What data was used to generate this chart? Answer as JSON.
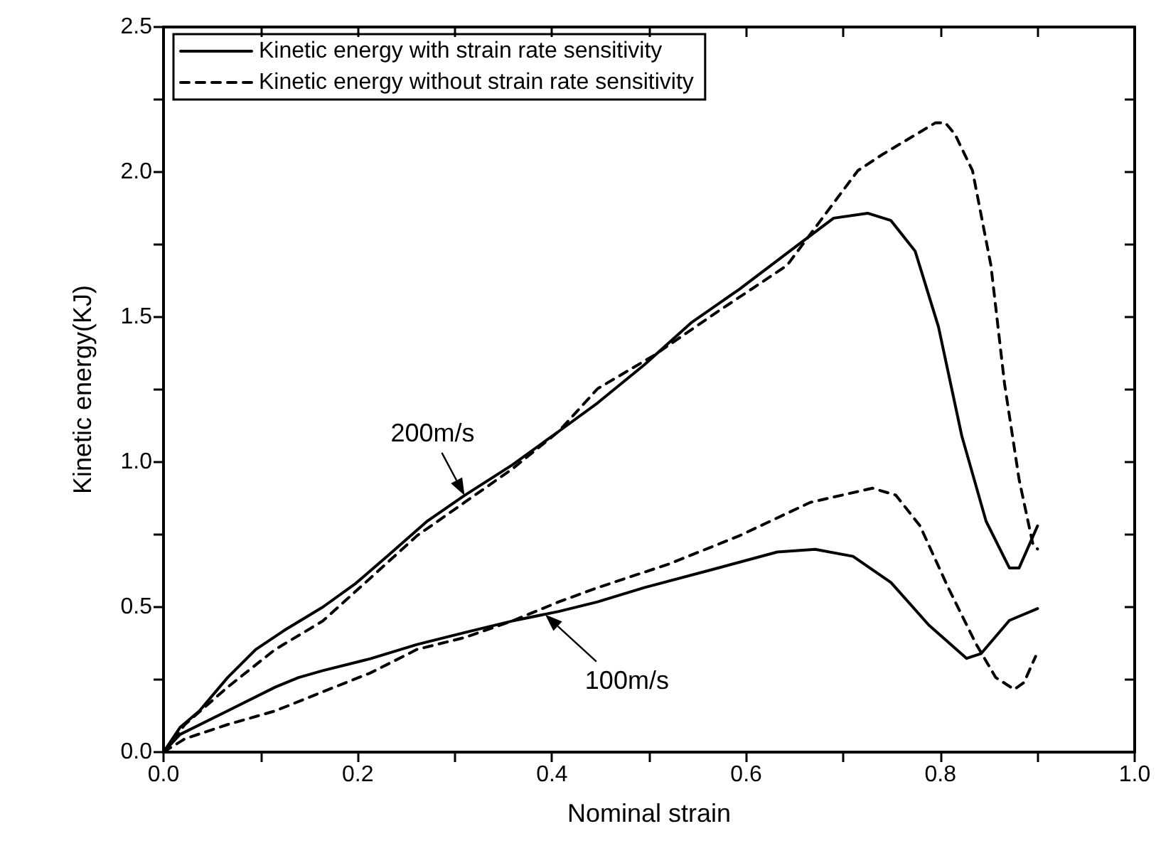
{
  "chart_data": {
    "type": "line",
    "xlabel": "Nominal strain",
    "ylabel": "Kinetic energy(KJ)",
    "xlim": [
      0,
      1
    ],
    "xticks": [
      {
        "value": 0,
        "label": "0.0"
      },
      0.2,
      0.4,
      0.6,
      0.8,
      {
        "value": 1,
        "label": "1.0"
      }
    ],
    "ylim": [
      0,
      2.5
    ],
    "yticks": [
      {
        "value": 0,
        "label": "0.0"
      },
      0.5,
      {
        "value": 1,
        "label": "1.0"
      },
      1.5,
      {
        "value": 2,
        "label": "2.0"
      },
      2.5
    ],
    "grid": false,
    "legend": "top left",
    "marker": "none",
    "series": [
      {
        "name": "Kinetic energy with strain rate sensitivity",
        "color": "#000000",
        "line_style": "solid",
        "x": [
          0,
          0.017,
          0.037,
          0.066,
          0.095,
          0.124,
          0.164,
          0.198,
          0.232,
          0.271,
          0.31,
          0.359,
          0.407,
          0.447,
          0.495,
          0.544,
          0.593,
          0.651,
          0.69,
          0.725,
          0.749,
          0.774,
          0.798,
          0.822,
          0.847,
          0.871,
          0.881,
          0.9
        ],
        "values": [
          0,
          0.085,
          0.142,
          0.257,
          0.354,
          0.419,
          0.5,
          0.582,
          0.68,
          0.795,
          0.885,
          0.99,
          1.106,
          1.204,
          1.335,
          1.482,
          1.596,
          1.743,
          1.841,
          1.858,
          1.833,
          1.727,
          1.466,
          1.09,
          0.796,
          0.635,
          0.635,
          0.78
        ]
      },
      {
        "name": "Kinetic energy without strain rate sensitivity",
        "color": "#000000",
        "line_style": "dashed",
        "x": [
          0,
          0.022,
          0.066,
          0.115,
          0.164,
          0.213,
          0.261,
          0.31,
          0.359,
          0.407,
          0.447,
          0.505,
          0.569,
          0.642,
          0.715,
          0.74,
          0.77,
          0.795,
          0.805,
          0.815,
          0.833,
          0.852,
          0.866,
          0.881,
          0.895,
          0.9
        ],
        "values": [
          0,
          0.095,
          0.224,
          0.354,
          0.452,
          0.6,
          0.746,
          0.861,
          0.976,
          1.106,
          1.253,
          1.368,
          1.515,
          1.678,
          2.005,
          2.06,
          2.12,
          2.17,
          2.17,
          2.13,
          2.005,
          1.678,
          1.27,
          0.94,
          0.72,
          0.7
        ]
      },
      {
        "color": "#000000",
        "line_style": "solid",
        "x": [
          0,
          0.017,
          0.066,
          0.115,
          0.139,
          0.164,
          0.213,
          0.261,
          0.31,
          0.359,
          0.407,
          0.447,
          0.495,
          0.569,
          0.632,
          0.671,
          0.71,
          0.749,
          0.788,
          0.827,
          0.842,
          0.871,
          0.9
        ],
        "values": [
          0,
          0.061,
          0.142,
          0.224,
          0.257,
          0.281,
          0.322,
          0.371,
          0.412,
          0.452,
          0.485,
          0.518,
          0.567,
          0.633,
          0.69,
          0.699,
          0.675,
          0.585,
          0.438,
          0.323,
          0.34,
          0.454,
          0.495
        ]
      },
      {
        "color": "#000000",
        "line_style": "dashed",
        "x": [
          0,
          0.022,
          0.066,
          0.115,
          0.164,
          0.213,
          0.261,
          0.31,
          0.359,
          0.407,
          0.447,
          0.52,
          0.593,
          0.666,
          0.73,
          0.754,
          0.779,
          0.808,
          0.837,
          0.857,
          0.876,
          0.886,
          0.898
        ],
        "values": [
          0,
          0.046,
          0.095,
          0.142,
          0.208,
          0.273,
          0.354,
          0.395,
          0.452,
          0.518,
          0.567,
          0.648,
          0.746,
          0.861,
          0.91,
          0.886,
          0.78,
          0.567,
          0.371,
          0.257,
          0.216,
          0.24,
          0.33
        ]
      }
    ],
    "annotations": [
      {
        "text": "200m/s",
        "x": 0.31,
        "y": 0.885
      },
      {
        "text": "100m/s",
        "x": 0.393,
        "y": 0.474
      }
    ]
  }
}
